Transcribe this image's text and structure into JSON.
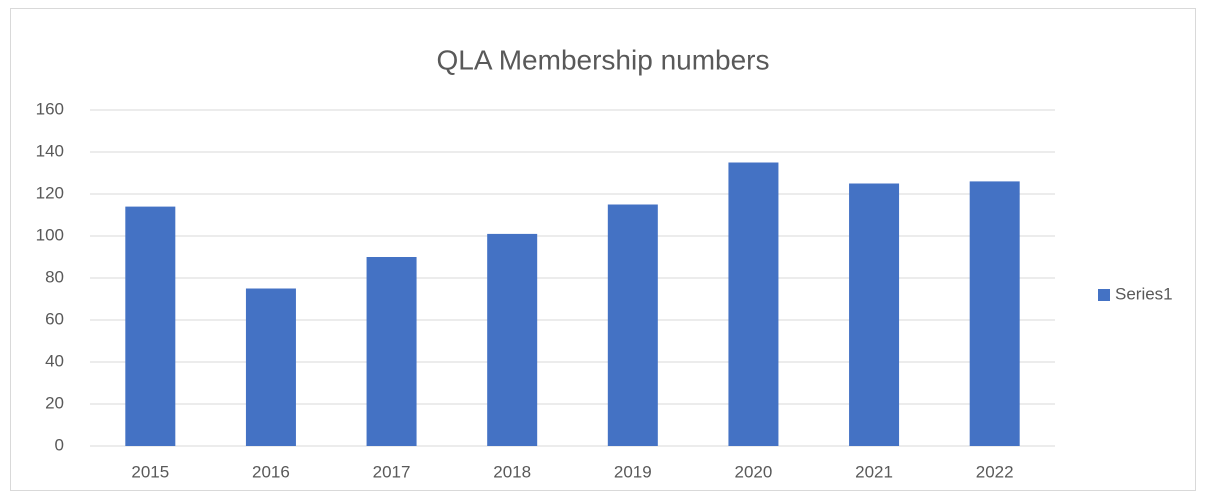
{
  "chart_data": {
    "type": "bar",
    "title": "QLA Membership numbers",
    "categories": [
      "2015",
      "2016",
      "2017",
      "2018",
      "2019",
      "2020",
      "2021",
      "2022"
    ],
    "series": [
      {
        "name": "Series1",
        "color": "#4472c4",
        "values": [
          114,
          75,
          90,
          101,
          115,
          135,
          125,
          126
        ]
      }
    ],
    "ylim": [
      0,
      160
    ],
    "yticks": [
      0,
      20,
      40,
      60,
      80,
      100,
      120,
      140,
      160
    ],
    "grid": true,
    "legend": "right"
  }
}
